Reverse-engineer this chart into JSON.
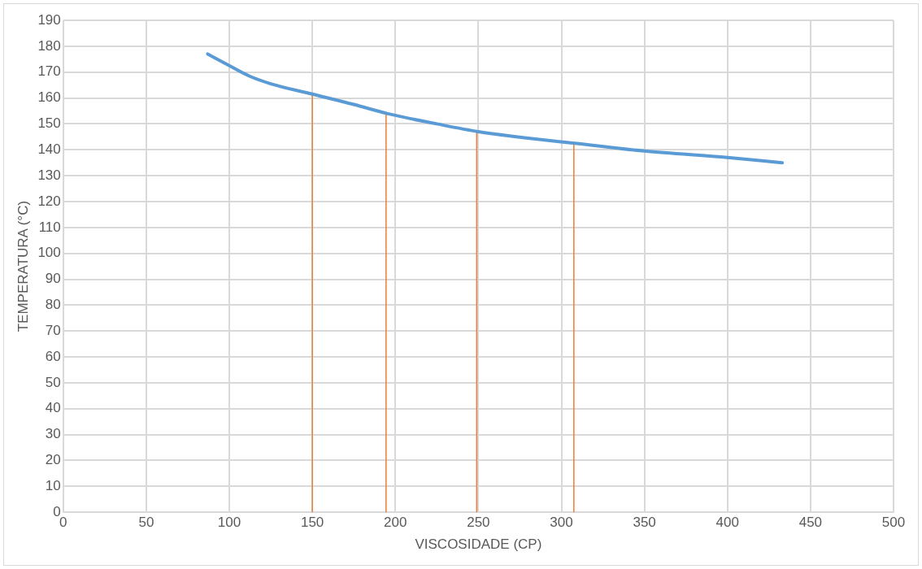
{
  "chart_data": {
    "type": "line",
    "xlabel": "VISCOSIDADE (CP)",
    "ylabel": "TEMPERATURA (°C)",
    "xlim": [
      0,
      500
    ],
    "xticks": [
      0,
      50,
      100,
      150,
      200,
      250,
      300,
      350,
      400,
      450,
      500
    ],
    "ylim": [
      0,
      190
    ],
    "yticks": [
      0,
      10,
      20,
      30,
      40,
      50,
      60,
      70,
      80,
      90,
      100,
      110,
      120,
      130,
      140,
      150,
      160,
      170,
      180,
      190
    ],
    "grid": true,
    "legend": false,
    "marker": "none",
    "line_style": "solid",
    "series": [
      {
        "color": "#5b9bd5",
        "x": [
          87,
          100,
          112,
          125,
          150,
          175,
          195,
          225,
          250,
          280,
          308,
          350,
          400,
          433
        ],
        "values": [
          177,
          172.5,
          168.5,
          165.5,
          161.5,
          157.5,
          154,
          150,
          147,
          144.5,
          142.5,
          139.5,
          137,
          135
        ]
      },
      {
        "color": "#ed7d31",
        "x": [
          150,
          150
        ],
        "values": [
          0,
          161.5
        ]
      },
      {
        "color": "#ed7d31",
        "x": [
          194.4,
          194.4
        ],
        "values": [
          0,
          153.5
        ]
      },
      {
        "color": "#ed7d31",
        "x": [
          249,
          249
        ],
        "values": [
          0,
          147
        ]
      },
      {
        "color": "#ed7d31",
        "x": [
          307.5,
          307.5
        ],
        "values": [
          0,
          142.5
        ]
      }
    ]
  }
}
